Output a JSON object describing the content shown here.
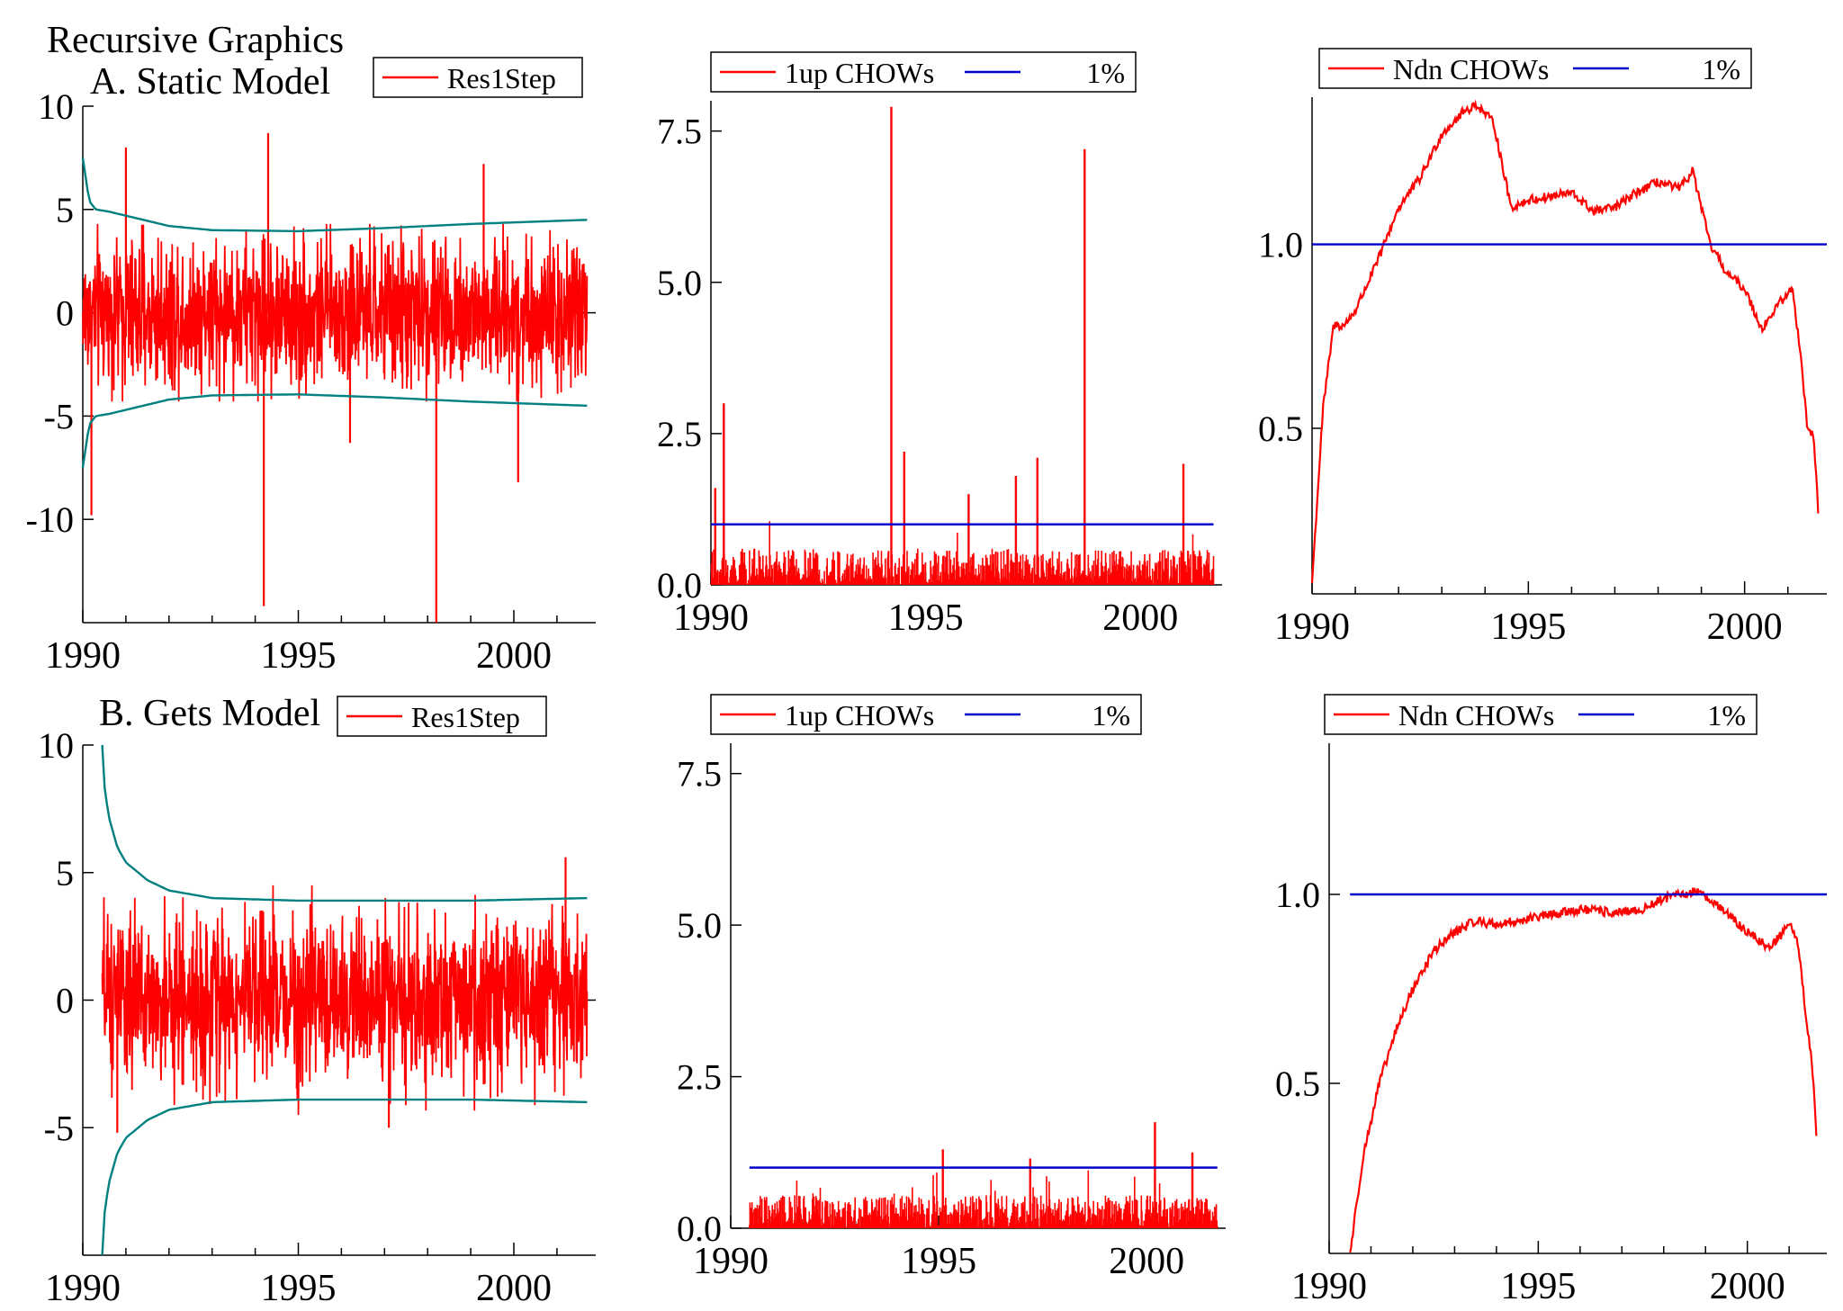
{
  "title": "Recursive Graphics",
  "sections": [
    {
      "label": "A. Static Model"
    },
    {
      "label": "B. Gets Model"
    }
  ],
  "colors": {
    "series": "#ff0000",
    "bands": "#008080",
    "critical": "#0000cc",
    "axis": "#000000"
  },
  "chart_data": [
    {
      "id": "A-res1step",
      "type": "line",
      "section": "A",
      "title": "",
      "xlabel": "",
      "ylabel": "",
      "legend": [
        {
          "label": "Res1Step",
          "color": "#ff0000"
        }
      ],
      "legend_position": "top-right",
      "xlim": [
        1990,
        2001.9
      ],
      "ylim": [
        -15,
        10
      ],
      "xticks": [
        1990,
        1995,
        2000
      ],
      "yticks": [
        -10,
        -5,
        0,
        5,
        10
      ],
      "ytick_labels": [
        "-10",
        "-5",
        "0",
        "5",
        "10"
      ],
      "series": [
        {
          "name": "Res1Step",
          "x_range": [
            1990.0,
            2001.7
          ],
          "amplitude": 2.6,
          "spread": 4.3,
          "spikes": [
            {
              "x": 1990.2,
              "y": -9.8
            },
            {
              "x": 1991.0,
              "y": 8.0
            },
            {
              "x": 1994.2,
              "y": -14.2
            },
            {
              "x": 1994.3,
              "y": 8.7
            },
            {
              "x": 1996.2,
              "y": -6.3
            },
            {
              "x": 1998.2,
              "y": -15
            },
            {
              "x": 2000.1,
              "y": -8.2
            },
            {
              "x": 1999.3,
              "y": 7.2
            }
          ]
        }
      ],
      "bands": [
        {
          "x": [
            1990.0,
            1990.15,
            1990.3,
            1990.6,
            1991,
            1992,
            1993,
            1995,
            1997,
            1999,
            2001.7
          ],
          "upper": [
            7.5,
            5.4,
            5.0,
            4.9,
            4.7,
            4.2,
            4.0,
            3.95,
            4.1,
            4.3,
            4.5
          ]
        }
      ]
    },
    {
      "id": "A-1up",
      "type": "line",
      "section": "A",
      "title": "",
      "xlabel": "",
      "ylabel": "",
      "legend": [
        {
          "label": "1up CHOWs",
          "color": "#ff0000"
        },
        {
          "label": "1%",
          "color": "#0000cc"
        }
      ],
      "legend_position": "top",
      "xlim": [
        1990,
        2001.9
      ],
      "ylim": [
        0,
        8
      ],
      "xticks": [
        1990,
        1995,
        2000
      ],
      "yticks": [
        0,
        2.5,
        5,
        7.5
      ],
      "ytick_labels": [
        "0.0",
        "2.5",
        "5.0",
        "7.5"
      ],
      "critical_value": 1.0,
      "series": [
        {
          "name": "1up CHOWs",
          "x_range": [
            1990.0,
            2001.7
          ],
          "typical_max": 0.6,
          "spikes": [
            {
              "x": 1990.3,
              "y": 3.0
            },
            {
              "x": 1990.1,
              "y": 1.6
            },
            {
              "x": 1994.2,
              "y": 7.9
            },
            {
              "x": 1994.5,
              "y": 2.2
            },
            {
              "x": 1997.6,
              "y": 2.1
            },
            {
              "x": 1998.7,
              "y": 7.2
            },
            {
              "x": 2001.0,
              "y": 2.0
            },
            {
              "x": 1996.0,
              "y": 1.5
            },
            {
              "x": 1997.1,
              "y": 1.8
            }
          ]
        }
      ]
    },
    {
      "id": "A-ndn",
      "type": "line",
      "section": "A",
      "title": "",
      "xlabel": "",
      "ylabel": "",
      "legend": [
        {
          "label": "Ndn CHOWs",
          "color": "#ff0000"
        },
        {
          "label": "1%",
          "color": "#0000cc"
        }
      ],
      "legend_position": "top",
      "xlim": [
        1990,
        2001.9
      ],
      "ylim": [
        0.05,
        1.4
      ],
      "xticks": [
        1990,
        1995,
        2000
      ],
      "yticks": [
        0.5,
        1.0
      ],
      "ytick_labels": [
        "0.5",
        "1.0"
      ],
      "critical_value": 1.0,
      "series": [
        {
          "name": "Ndn CHOWs",
          "x": [
            1990.0,
            1990.25,
            1990.5,
            1990.75,
            1991.0,
            1991.5,
            1992.0,
            1992.5,
            1993.0,
            1993.5,
            1993.8,
            1994.2,
            1994.6,
            1995.0,
            1995.5,
            1996.0,
            1996.5,
            1997.0,
            1997.5,
            1998.0,
            1998.5,
            1998.8,
            1999.2,
            1999.6,
            2000.0,
            2000.4,
            2000.8,
            2001.1,
            2001.3,
            2001.45,
            2001.6,
            2001.7
          ],
          "y": [
            0.08,
            0.55,
            0.78,
            0.78,
            0.82,
            0.95,
            1.1,
            1.18,
            1.3,
            1.36,
            1.38,
            1.33,
            1.1,
            1.12,
            1.13,
            1.14,
            1.09,
            1.1,
            1.14,
            1.17,
            1.15,
            1.2,
            1.0,
            0.92,
            0.88,
            0.77,
            0.84,
            0.88,
            0.7,
            0.5,
            0.48,
            0.27
          ]
        }
      ]
    },
    {
      "id": "B-res1step",
      "type": "line",
      "section": "B",
      "title": "",
      "xlabel": "",
      "ylabel": "",
      "legend": [
        {
          "label": "Res1Step",
          "color": "#ff0000"
        }
      ],
      "legend_position": "top-right",
      "xlim": [
        1990,
        2001.9
      ],
      "ylim": [
        -10,
        10
      ],
      "xticks": [
        1990,
        1995,
        2000
      ],
      "yticks": [
        -5,
        0,
        5,
        10
      ],
      "ytick_labels": [
        "-5",
        "0",
        "5",
        "10"
      ],
      "series": [
        {
          "name": "Res1Step",
          "x_range": [
            1990.45,
            2001.7
          ],
          "amplitude": 2.3,
          "spread": 4.5,
          "spikes": [
            {
              "x": 1990.8,
              "y": -5.2
            },
            {
              "x": 2001.2,
              "y": 5.6
            },
            {
              "x": 1997.1,
              "y": -5.0
            }
          ]
        }
      ],
      "bands": [
        {
          "x": [
            1990.45,
            1990.5,
            1990.6,
            1990.8,
            1991.0,
            1991.5,
            1992.0,
            1993.0,
            1995.0,
            1997.0,
            1999.0,
            2001.7
          ],
          "upper": [
            10.0,
            8.4,
            7.2,
            6.0,
            5.4,
            4.7,
            4.3,
            4.0,
            3.9,
            3.9,
            3.9,
            4.0
          ]
        }
      ]
    },
    {
      "id": "B-1up",
      "type": "line",
      "section": "B",
      "title": "",
      "xlabel": "",
      "ylabel": "",
      "legend": [
        {
          "label": "1up CHOWs",
          "color": "#ff0000"
        },
        {
          "label": "1%",
          "color": "#0000cc"
        }
      ],
      "legend_position": "top",
      "xlim": [
        1990,
        2001.9
      ],
      "ylim": [
        0,
        8
      ],
      "xticks": [
        1990,
        1995,
        2000
      ],
      "yticks": [
        0,
        2.5,
        5,
        7.5
      ],
      "ytick_labels": [
        "0.0",
        "2.5",
        "5.0",
        "7.5"
      ],
      "critical_value": 1.0,
      "series": [
        {
          "name": "1up CHOWs",
          "x_range": [
            1990.45,
            2001.7
          ],
          "typical_max": 0.55,
          "spikes": [
            {
              "x": 2000.2,
              "y": 1.75
            },
            {
              "x": 1995.1,
              "y": 1.3
            },
            {
              "x": 2001.1,
              "y": 1.25
            },
            {
              "x": 1997.2,
              "y": 1.15
            }
          ]
        }
      ]
    },
    {
      "id": "B-ndn",
      "type": "line",
      "section": "B",
      "title": "",
      "xlabel": "",
      "ylabel": "",
      "legend": [
        {
          "label": "Ndn CHOWs",
          "color": "#ff0000"
        },
        {
          "label": "1%",
          "color": "#0000cc"
        }
      ],
      "legend_position": "top",
      "xlim": [
        1990,
        2001.9
      ],
      "ylim": [
        0.05,
        1.4
      ],
      "xticks": [
        1990,
        1995,
        2000
      ],
      "yticks": [
        0.5,
        1.0
      ],
      "ytick_labels": [
        "0.5",
        "1.0"
      ],
      "critical_value": 1.0,
      "series": [
        {
          "name": "Ndn CHOWs",
          "x": [
            1990.5,
            1990.8,
            1991.2,
            1991.6,
            1992.0,
            1992.5,
            1993.0,
            1993.5,
            1994.0,
            1995.0,
            1996.0,
            1997.0,
            1997.5,
            1998.0,
            1998.5,
            1998.8,
            1999.2,
            1999.6,
            2000.0,
            2000.5,
            2000.8,
            2001.0,
            2001.2,
            2001.4,
            2001.55,
            2001.65
          ],
          "y": [
            0.05,
            0.3,
            0.5,
            0.64,
            0.75,
            0.85,
            0.9,
            0.93,
            0.92,
            0.94,
            0.96,
            0.95,
            0.96,
            0.99,
            1.0,
            1.01,
            0.98,
            0.94,
            0.9,
            0.86,
            0.89,
            0.93,
            0.88,
            0.68,
            0.55,
            0.37
          ]
        }
      ]
    }
  ]
}
